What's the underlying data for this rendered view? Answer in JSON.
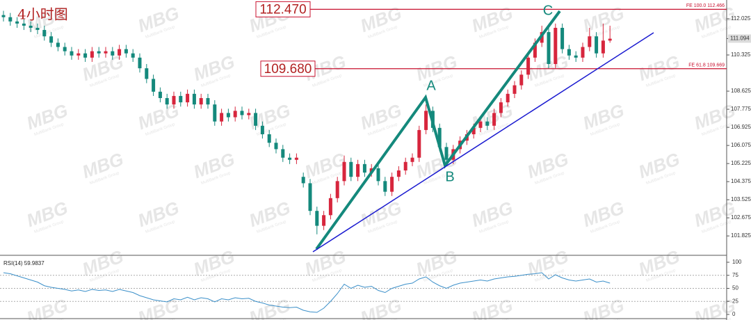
{
  "chart_data": [
    {
      "type": "candlestick",
      "title": "4小时图",
      "up_color": "#d7263d",
      "down_color": "#14897c",
      "open": [
        112.2,
        112.1,
        111.9,
        111.8,
        111.7,
        111.6,
        111.5,
        111.2,
        110.9,
        110.7,
        110.5,
        110.3,
        110.4,
        110.2,
        110.5,
        110.4,
        110.5,
        110.3,
        110.6,
        110.4,
        110.2,
        109.7,
        109.2,
        108.6,
        108.3,
        108.0,
        108.4,
        108.1,
        108.5,
        108.0,
        108.3,
        108.0,
        107.2,
        107.6,
        107.4,
        107.7,
        107.5,
        107.6,
        107.0,
        106.6,
        106.2,
        105.9,
        105.5,
        105.4,
        104.6,
        104.3,
        103.0,
        102.3,
        102.8,
        103.6,
        104.4,
        105.3,
        104.6,
        105.2,
        104.8,
        105.0,
        104.4,
        103.9,
        104.6,
        104.9,
        105.3,
        105.5,
        106.8,
        107.7,
        106.9,
        106.0,
        105.4,
        105.9,
        106.3,
        106.6,
        106.9,
        107.2,
        107.0,
        107.6,
        108.1,
        108.5,
        108.9,
        109.4,
        110.2,
        110.9,
        111.4,
        109.9,
        111.6,
        110.6,
        110.3,
        110.2,
        110.7,
        111.2,
        110.4,
        111.0
      ],
      "high": [
        112.4,
        112.3,
        112.1,
        112.0,
        111.9,
        111.8,
        111.7,
        111.4,
        111.1,
        110.9,
        110.7,
        110.6,
        110.6,
        110.7,
        110.7,
        110.7,
        110.7,
        110.8,
        110.8,
        110.6,
        110.4,
        109.9,
        109.4,
        108.8,
        108.5,
        108.6,
        108.6,
        108.7,
        108.7,
        108.5,
        108.5,
        108.2,
        107.8,
        107.8,
        107.9,
        107.9,
        107.8,
        107.8,
        107.2,
        106.8,
        106.4,
        106.1,
        105.7,
        105.7,
        104.8,
        104.5,
        103.2,
        103.0,
        103.8,
        104.6,
        105.6,
        105.5,
        105.4,
        105.4,
        105.2,
        105.2,
        104.6,
        104.8,
        105.1,
        105.5,
        105.7,
        107.0,
        108.0,
        107.9,
        107.1,
        106.2,
        106.1,
        106.5,
        106.8,
        107.1,
        107.4,
        107.4,
        107.8,
        108.3,
        108.7,
        109.1,
        109.6,
        110.4,
        111.1,
        111.7,
        111.6,
        111.8,
        111.8,
        110.8,
        110.5,
        110.9,
        111.6,
        111.4,
        111.8,
        111.7
      ],
      "low": [
        111.9,
        111.7,
        111.6,
        111.5,
        111.4,
        111.3,
        111.0,
        110.7,
        110.5,
        110.3,
        110.1,
        110.1,
        110.0,
        110.0,
        110.2,
        110.2,
        110.1,
        110.1,
        110.2,
        110.0,
        109.5,
        109.0,
        108.4,
        108.1,
        107.8,
        107.8,
        107.9,
        107.9,
        107.8,
        107.8,
        107.8,
        107.0,
        107.0,
        107.2,
        107.2,
        107.3,
        107.3,
        106.8,
        106.4,
        106.0,
        105.7,
        105.3,
        105.2,
        105.2,
        104.1,
        102.8,
        101.9,
        102.1,
        102.6,
        103.4,
        104.2,
        104.4,
        104.4,
        104.6,
        104.6,
        104.2,
        103.7,
        103.7,
        104.4,
        104.7,
        105.1,
        105.3,
        106.6,
        106.7,
        105.8,
        105.2,
        105.2,
        105.7,
        106.1,
        106.4,
        106.7,
        106.8,
        106.8,
        107.4,
        107.9,
        108.3,
        108.7,
        109.2,
        110.0,
        110.7,
        109.7,
        109.7,
        110.4,
        110.1,
        110.0,
        110.0,
        110.5,
        110.2,
        110.2,
        110.9
      ],
      "close": [
        112.1,
        111.9,
        111.8,
        111.7,
        111.6,
        111.5,
        111.2,
        110.9,
        110.7,
        110.5,
        110.3,
        110.4,
        110.2,
        110.5,
        110.4,
        110.5,
        110.3,
        110.6,
        110.4,
        110.2,
        109.7,
        109.2,
        108.6,
        108.3,
        108.0,
        108.4,
        108.1,
        108.5,
        108.0,
        108.3,
        108.0,
        107.2,
        107.6,
        107.4,
        107.7,
        107.5,
        107.6,
        107.0,
        106.6,
        106.2,
        105.9,
        105.5,
        105.4,
        105.5,
        104.3,
        103.0,
        102.3,
        102.8,
        103.6,
        104.4,
        105.3,
        104.6,
        105.2,
        104.8,
        105.0,
        104.4,
        103.9,
        104.6,
        104.9,
        105.3,
        105.5,
        106.8,
        107.7,
        106.9,
        106.0,
        105.4,
        105.9,
        106.3,
        106.6,
        106.9,
        107.2,
        107.0,
        107.6,
        108.1,
        108.5,
        108.9,
        109.4,
        110.2,
        110.9,
        111.4,
        109.9,
        111.6,
        110.6,
        110.3,
        110.2,
        110.7,
        111.2,
        110.4,
        111.0,
        111.09
      ],
      "ylim": [
        100.98,
        112.907
      ],
      "yticks": [
        112.025,
        110.325,
        108.625,
        107.775,
        106.925,
        106.075,
        105.225,
        104.375,
        103.525,
        102.675,
        101.825
      ],
      "current_price": 111.094,
      "levels": [
        {
          "value": 112.47,
          "label": "112.470",
          "note": "FE 100.0  112.466"
        },
        {
          "value": 109.68,
          "label": "109.680",
          "note": "FE 61.8  109.669"
        }
      ],
      "points": [
        "A",
        "B",
        "C"
      ],
      "watermark": [
        "MBG",
        "MultiBank Group"
      ]
    },
    {
      "type": "line",
      "title": "RSI(14) 59.9837",
      "color": "#3a8fc9",
      "values": [
        80,
        78,
        74,
        70,
        66,
        62,
        55,
        52,
        50,
        48,
        45,
        47,
        44,
        48,
        46,
        47,
        44,
        48,
        45,
        42,
        36,
        32,
        28,
        26,
        24,
        30,
        28,
        33,
        28,
        32,
        30,
        24,
        30,
        28,
        32,
        30,
        31,
        25,
        22,
        18,
        16,
        14,
        13,
        14,
        8,
        5,
        4,
        12,
        25,
        40,
        58,
        50,
        56,
        52,
        54,
        46,
        42,
        50,
        54,
        58,
        60,
        68,
        72,
        62,
        55,
        50,
        56,
        60,
        62,
        64,
        66,
        64,
        68,
        70,
        72,
        73,
        75,
        77,
        78,
        80,
        68,
        76,
        70,
        66,
        64,
        66,
        68,
        62,
        64,
        60
      ],
      "ylim": [
        0,
        100
      ],
      "yticks": [
        100,
        75,
        50,
        25,
        0
      ]
    }
  ]
}
